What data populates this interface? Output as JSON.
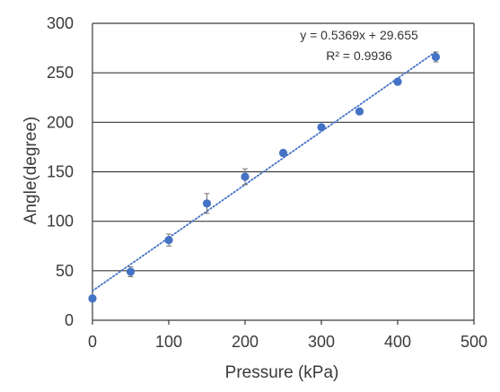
{
  "chart_data": {
    "type": "scatter",
    "xlabel": "Pressure (kPa)",
    "ylabel": "Angle(degree)",
    "xlim": [
      0,
      500
    ],
    "ylim": [
      0,
      300
    ],
    "x_ticks": [
      0,
      100,
      200,
      300,
      400,
      500
    ],
    "x_tick_labels": [
      "0",
      "100",
      "200",
      "300",
      "400",
      "500"
    ],
    "y_ticks": [
      0,
      50,
      100,
      150,
      200,
      250,
      300
    ],
    "y_tick_labels": [
      "0",
      "50",
      "100",
      "150",
      "200",
      "250",
      "300"
    ],
    "grid": "horizontal",
    "legend": "none",
    "points": [
      {
        "x": 0,
        "y": 22,
        "err": 3
      },
      {
        "x": 50,
        "y": 49,
        "err": 5
      },
      {
        "x": 100,
        "y": 81,
        "err": 6
      },
      {
        "x": 150,
        "y": 118,
        "err": 10
      },
      {
        "x": 200,
        "y": 145,
        "err": 8
      },
      {
        "x": 250,
        "y": 169,
        "err": 3
      },
      {
        "x": 300,
        "y": 195,
        "err": 2
      },
      {
        "x": 350,
        "y": 211,
        "err": 2
      },
      {
        "x": 400,
        "y": 241,
        "err": 3
      },
      {
        "x": 450,
        "y": 266,
        "err": 5
      }
    ],
    "trendline": {
      "type": "linear",
      "slope": 0.5369,
      "intercept": 29.655,
      "x_range": [
        0,
        450
      ],
      "style": "dotted"
    },
    "annotations": {
      "equation": "y = 0.5369x + 29.655",
      "r_squared": "R² = 0.9936"
    },
    "colors": {
      "marker": "#4472c4",
      "trendline": "#4472c4",
      "grid": "#3a3a3a",
      "axis": "#3a3a3a",
      "error_bar": "#707070"
    }
  }
}
